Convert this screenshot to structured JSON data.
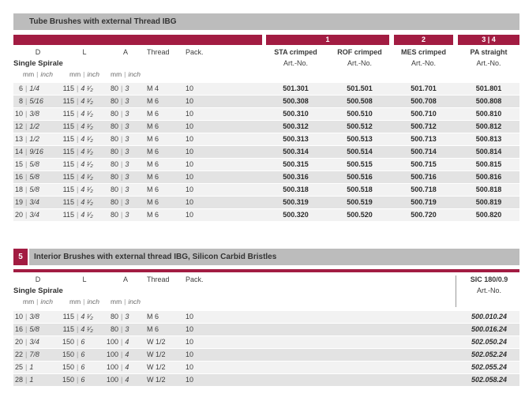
{
  "units": {
    "mm": "mm",
    "inch": "inch",
    "sep": "|"
  },
  "colors": {
    "accent": "#a21c42",
    "bar_gray": "#bcbcbc",
    "row_odd": "#f2f2f2",
    "row_even": "#e3e3e3"
  },
  "sections": [
    {
      "title": "Tube Brushes with external Thread IBG",
      "dim_columns": [
        "D",
        "L",
        "A",
        "Thread",
        "Pack."
      ],
      "subtitle": "Single Spirale",
      "group_bars": [
        "1",
        "2",
        "3 | 4"
      ],
      "variants": [
        {
          "name": "STA crimped",
          "artno_label": "Art.-No."
        },
        {
          "name": "ROF crimped",
          "artno_label": "Art.-No."
        },
        {
          "name": "MES crimped",
          "artno_label": "Art.-No."
        },
        {
          "name": "PA straight",
          "artno_label": "Art.-No."
        }
      ],
      "rows": [
        {
          "d": [
            "6",
            "1/4"
          ],
          "l": [
            "115",
            "4 ¹⁄₂"
          ],
          "a": [
            "80",
            "3"
          ],
          "thread": "M 4",
          "pack": "10",
          "art": [
            "501.301",
            "501.501",
            "501.701",
            "501.801"
          ]
        },
        {
          "d": [
            "8",
            "5/16"
          ],
          "l": [
            "115",
            "4 ¹⁄₂"
          ],
          "a": [
            "80",
            "3"
          ],
          "thread": "M 6",
          "pack": "10",
          "art": [
            "500.308",
            "500.508",
            "500.708",
            "500.808"
          ]
        },
        {
          "d": [
            "10",
            "3/8"
          ],
          "l": [
            "115",
            "4 ¹⁄₂"
          ],
          "a": [
            "80",
            "3"
          ],
          "thread": "M 6",
          "pack": "10",
          "art": [
            "500.310",
            "500.510",
            "500.710",
            "500.810"
          ]
        },
        {
          "d": [
            "12",
            "1/2"
          ],
          "l": [
            "115",
            "4 ¹⁄₂"
          ],
          "a": [
            "80",
            "3"
          ],
          "thread": "M 6",
          "pack": "10",
          "art": [
            "500.312",
            "500.512",
            "500.712",
            "500.812"
          ]
        },
        {
          "d": [
            "13",
            "1/2"
          ],
          "l": [
            "115",
            "4 ¹⁄₂"
          ],
          "a": [
            "80",
            "3"
          ],
          "thread": "M 6",
          "pack": "10",
          "art": [
            "500.313",
            "500.513",
            "500.713",
            "500.813"
          ]
        },
        {
          "d": [
            "14",
            "9/16"
          ],
          "l": [
            "115",
            "4 ¹⁄₂"
          ],
          "a": [
            "80",
            "3"
          ],
          "thread": "M 6",
          "pack": "10",
          "art": [
            "500.314",
            "500.514",
            "500.714",
            "500.814"
          ]
        },
        {
          "d": [
            "15",
            "5/8"
          ],
          "l": [
            "115",
            "4 ¹⁄₂"
          ],
          "a": [
            "80",
            "3"
          ],
          "thread": "M 6",
          "pack": "10",
          "art": [
            "500.315",
            "500.515",
            "500.715",
            "500.815"
          ]
        },
        {
          "d": [
            "16",
            "5/8"
          ],
          "l": [
            "115",
            "4 ¹⁄₂"
          ],
          "a": [
            "80",
            "3"
          ],
          "thread": "M 6",
          "pack": "10",
          "art": [
            "500.316",
            "500.516",
            "500.716",
            "500.816"
          ]
        },
        {
          "d": [
            "18",
            "5/8"
          ],
          "l": [
            "115",
            "4 ¹⁄₂"
          ],
          "a": [
            "80",
            "3"
          ],
          "thread": "M 6",
          "pack": "10",
          "art": [
            "500.318",
            "500.518",
            "500.718",
            "500.818"
          ]
        },
        {
          "d": [
            "19",
            "3/4"
          ],
          "l": [
            "115",
            "4 ¹⁄₂"
          ],
          "a": [
            "80",
            "3"
          ],
          "thread": "M 6",
          "pack": "10",
          "art": [
            "500.319",
            "500.519",
            "500.719",
            "500.819"
          ]
        },
        {
          "d": [
            "20",
            "3/4"
          ],
          "l": [
            "115",
            "4 ¹⁄₂"
          ],
          "a": [
            "80",
            "3"
          ],
          "thread": "M 6",
          "pack": "10",
          "art": [
            "500.320",
            "500.520",
            "500.720",
            "500.820"
          ]
        }
      ]
    },
    {
      "badge": "5",
      "title": "Interior Brushes with external thread IBG, Silicon Carbid Bristles",
      "dim_columns": [
        "D",
        "L",
        "A",
        "Thread",
        "Pack."
      ],
      "subtitle": "Single Spirale",
      "variants": [
        {
          "name": "SIC 180/0.9",
          "artno_label": "Art.-No."
        }
      ],
      "rows": [
        {
          "d": [
            "10",
            "3/8"
          ],
          "l": [
            "115",
            "4 ¹⁄₂"
          ],
          "a": [
            "80",
            "3"
          ],
          "thread": "M 6",
          "pack": "10",
          "art": [
            "500.010.24"
          ]
        },
        {
          "d": [
            "16",
            "5/8"
          ],
          "l": [
            "115",
            "4 ¹⁄₂"
          ],
          "a": [
            "80",
            "3"
          ],
          "thread": "M 6",
          "pack": "10",
          "art": [
            "500.016.24"
          ]
        },
        {
          "d": [
            "20",
            "3/4"
          ],
          "l": [
            "150",
            "6"
          ],
          "a": [
            "100",
            "4"
          ],
          "thread": "W 1/2",
          "pack": "10",
          "art": [
            "502.050.24"
          ]
        },
        {
          "d": [
            "22",
            "7/8"
          ],
          "l": [
            "150",
            "6"
          ],
          "a": [
            "100",
            "4"
          ],
          "thread": "W 1/2",
          "pack": "10",
          "art": [
            "502.052.24"
          ]
        },
        {
          "d": [
            "25",
            "1"
          ],
          "l": [
            "150",
            "6"
          ],
          "a": [
            "100",
            "4"
          ],
          "thread": "W 1/2",
          "pack": "10",
          "art": [
            "502.055.24"
          ]
        },
        {
          "d": [
            "28",
            "1"
          ],
          "l": [
            "150",
            "6"
          ],
          "a": [
            "100",
            "4"
          ],
          "thread": "W 1/2",
          "pack": "10",
          "art": [
            "502.058.24"
          ]
        }
      ]
    }
  ]
}
